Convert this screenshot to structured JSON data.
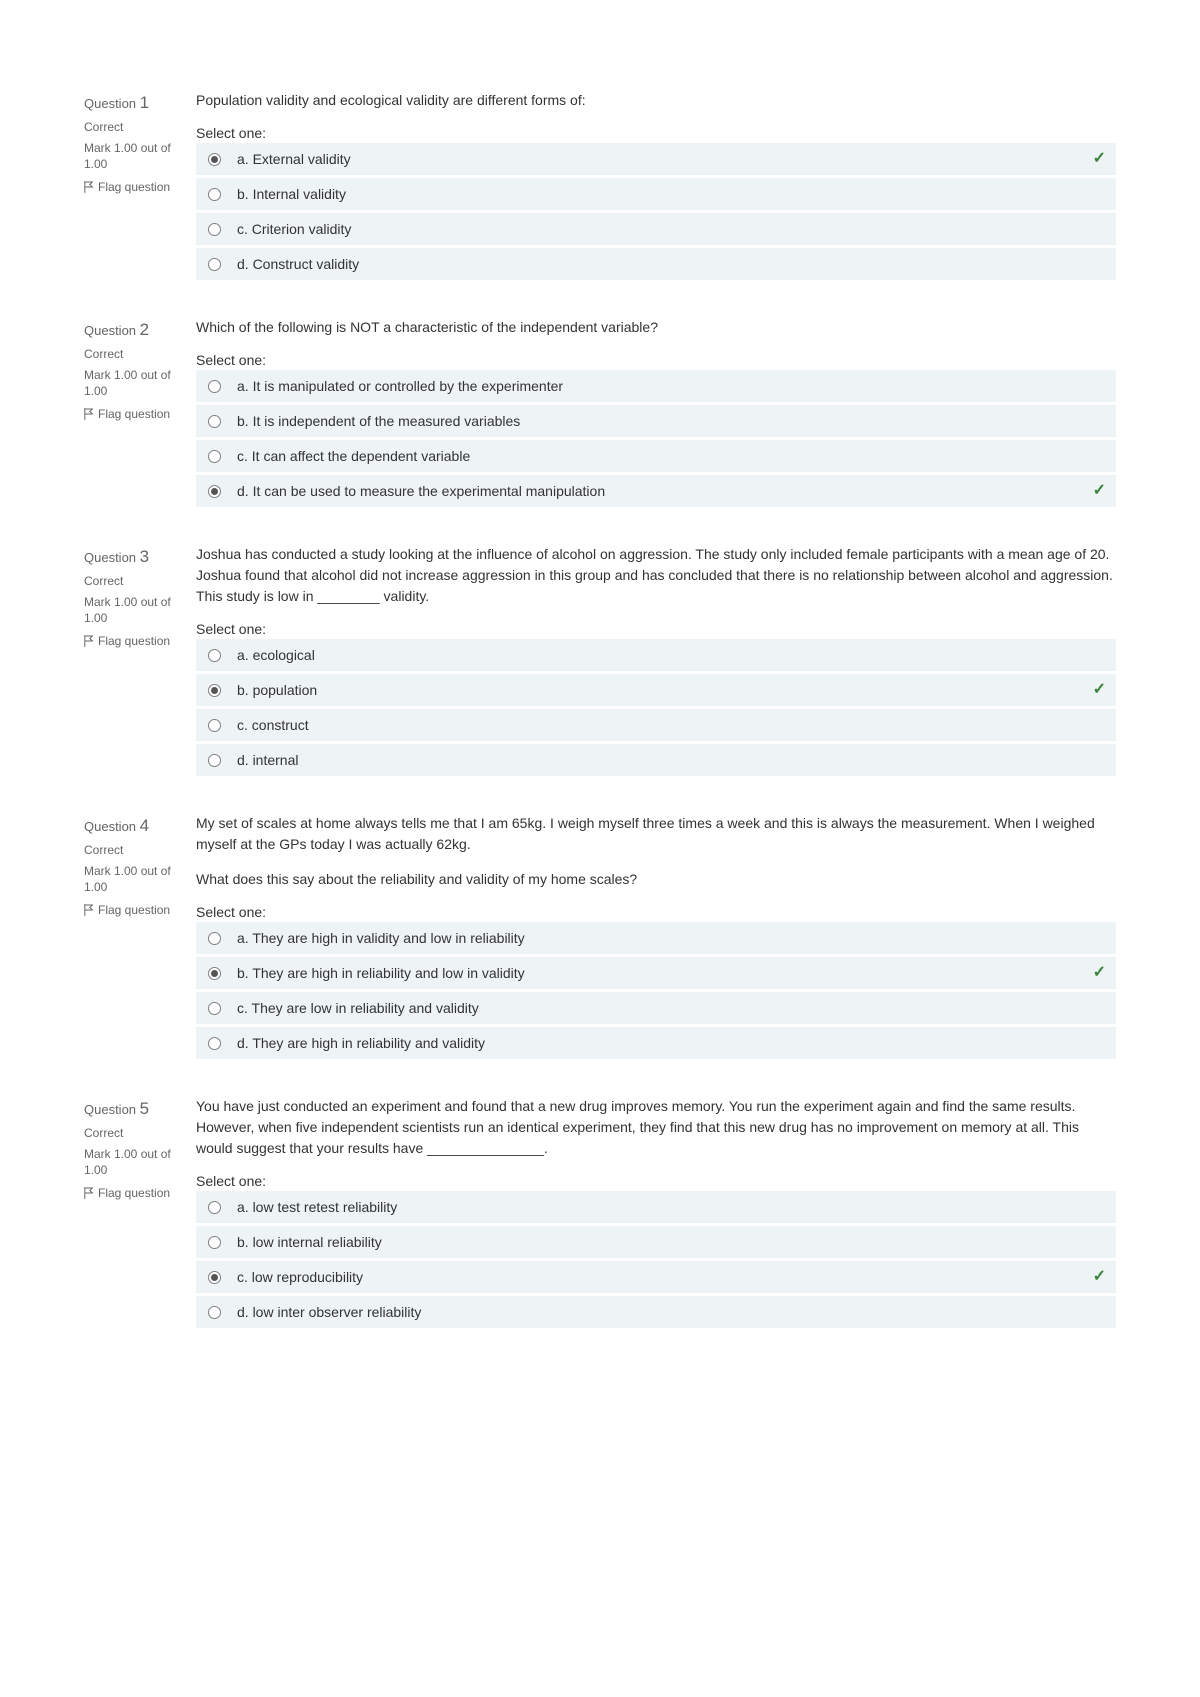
{
  "ui": {
    "question_label": "Question",
    "correct_state": "Correct",
    "mark_text": "Mark 1.00 out of 1.00",
    "flag_label": "Flag question",
    "prompt": "Select one:"
  },
  "questions": [
    {
      "number": "1",
      "text": "Population validity and ecological validity are different forms of:",
      "options": [
        {
          "label": "a. External validity",
          "selected": true,
          "correct": true
        },
        {
          "label": "b. Internal validity",
          "selected": false,
          "correct": false
        },
        {
          "label": "c. Criterion validity",
          "selected": false,
          "correct": false
        },
        {
          "label": "d. Construct validity",
          "selected": false,
          "correct": false
        }
      ]
    },
    {
      "number": "2",
      "text": "Which of the following is NOT a characteristic of the independent variable?",
      "options": [
        {
          "label": "a. It is manipulated or controlled by the experimenter",
          "selected": false,
          "correct": false
        },
        {
          "label": "b. It is independent of the measured variables",
          "selected": false,
          "correct": false
        },
        {
          "label": "c. It can affect the dependent variable",
          "selected": false,
          "correct": false
        },
        {
          "label": "d. It can be used to measure the experimental manipulation",
          "selected": true,
          "correct": true
        }
      ]
    },
    {
      "number": "3",
      "text": "Joshua has conducted a study looking at the influence of alcohol on aggression. The study only included female participants with a mean age of 20. Joshua found that alcohol did not increase aggression in this group and has concluded that there is no relationship between alcohol and aggression. This study is low in ________ validity.",
      "options": [
        {
          "label": "a. ecological",
          "selected": false,
          "correct": false
        },
        {
          "label": "b. population",
          "selected": true,
          "correct": true
        },
        {
          "label": "c. construct",
          "selected": false,
          "correct": false
        },
        {
          "label": "d. internal",
          "selected": false,
          "correct": false
        }
      ]
    },
    {
      "number": "4",
      "text": "My set of scales at home always tells me that I am 65kg. I weigh myself three times a week and this is always the measurement. When I weighed myself at the GPs today I was actually 62kg.\nWhat does this say about the reliability and validity of my home scales?",
      "options": [
        {
          "label": "a. They are high in validity and low in reliability",
          "selected": false,
          "correct": false
        },
        {
          "label": "b. They are high in reliability and low in validity",
          "selected": true,
          "correct": true
        },
        {
          "label": "c. They are low in reliability and validity",
          "selected": false,
          "correct": false
        },
        {
          "label": "d. They are high in reliability and validity",
          "selected": false,
          "correct": false
        }
      ]
    },
    {
      "number": "5",
      "text": "You have just conducted an experiment and found that a new drug improves memory. You run the experiment again and find the same results. However, when five independent scientists run an identical experiment, they find that this new drug has no improvement on memory at all. This would suggest that your results have _______________.",
      "options": [
        {
          "label": "a. low test retest reliability",
          "selected": false,
          "correct": false
        },
        {
          "label": "b. low internal reliability",
          "selected": false,
          "correct": false
        },
        {
          "label": "c. low reproducibility",
          "selected": true,
          "correct": true
        },
        {
          "label": "d. low inter observer reliability",
          "selected": false,
          "correct": false
        }
      ]
    }
  ]
}
